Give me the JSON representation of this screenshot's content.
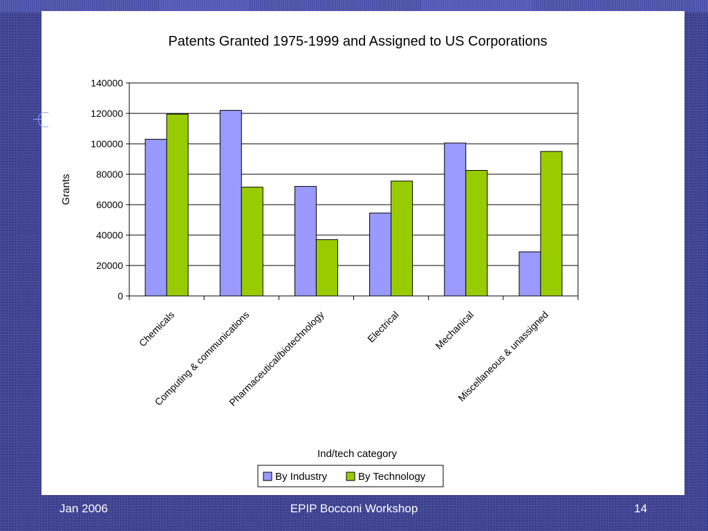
{
  "slide": {
    "footer_left": "Jan 2006",
    "footer_center": "EPIP Bocconi Workshop",
    "footer_right": "14"
  },
  "colors": {
    "background": "#3b3f8f",
    "panel": "#ffffff",
    "footer_text": "#ffffff"
  },
  "chart_data": {
    "type": "bar",
    "title": "Patents Granted 1975-1999 and Assigned to US Corporations",
    "xlabel": "Ind/tech category",
    "ylabel": "Grants",
    "ylim": [
      0,
      140000
    ],
    "yticks": [
      "0",
      "20000",
      "40000",
      "60000",
      "80000",
      "100000",
      "120000",
      "140000"
    ],
    "categories": [
      "Chemicals",
      "Computing & communications",
      "Pharmaceutical/biotechnology",
      "Electrical",
      "Mechanical",
      "Miscellaneous & unassigned"
    ],
    "series": [
      {
        "name": "By Industry",
        "color": "#9999ff",
        "values": [
          103000,
          122000,
          72000,
          54500,
          100500,
          29000
        ]
      },
      {
        "name": "By Technology",
        "color": "#99cc00",
        "values": [
          119500,
          71500,
          37000,
          75500,
          82500,
          95000
        ]
      }
    ],
    "grid": true,
    "legend": "bottom-center"
  }
}
